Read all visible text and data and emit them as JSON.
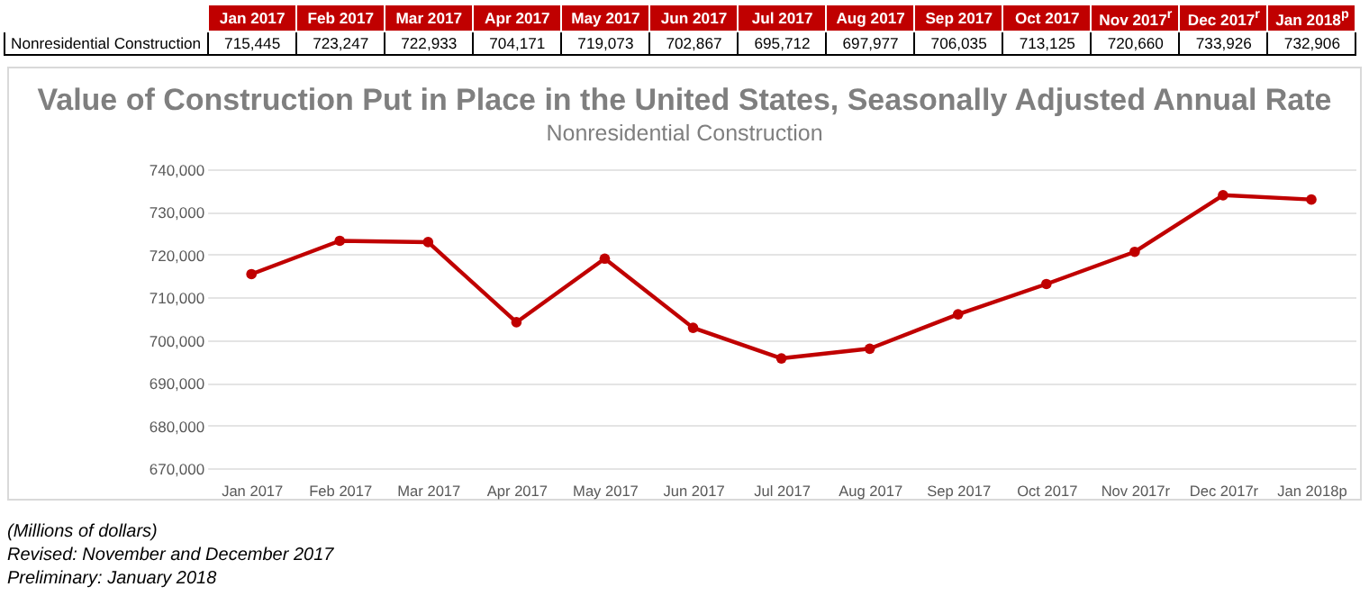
{
  "chart_data": {
    "type": "line",
    "title": "Value of Construction Put in Place in the United States, Seasonally Adjusted Annual Rate",
    "subtitle": "Nonresidential Construction",
    "categories": [
      "Jan 2017",
      "Feb 2017",
      "Mar 2017",
      "Apr 2017",
      "May 2017",
      "Jun 2017",
      "Jul 2017",
      "Aug 2017",
      "Sep 2017",
      "Oct 2017",
      "Nov 2017$^{r}$",
      "Dec 2017$^{r}$",
      "Jan 2018$^{p}$"
    ],
    "series": [
      {
        "name": "Nonresidential Construction",
        "color": "#c00000",
        "values": [
          715445,
          723247,
          722933,
          704171,
          719073,
          702867,
          695712,
          697977,
          706035,
          713125,
          720660,
          733926,
          732906
        ],
        "value_labels": [
          "715,445",
          "723,247",
          "722,933",
          "704,171",
          "719,073",
          "702,867",
          "695,712",
          "697,977",
          "706,035",
          "713,125",
          "720,660",
          "733,926",
          "732,906"
        ]
      }
    ],
    "ylim": [
      670000,
      740000
    ],
    "yticks": [
      {
        "value": 670000,
        "label": "670,000"
      },
      {
        "value": 680000,
        "label": "680,000"
      },
      {
        "value": 690000,
        "label": "690,000"
      },
      {
        "value": 700000,
        "label": "700,000"
      },
      {
        "value": 710000,
        "label": "710,000"
      },
      {
        "value": 720000,
        "label": "720,000"
      },
      {
        "value": 730000,
        "label": "730,000"
      },
      {
        "value": 740000,
        "label": "740,000"
      }
    ],
    "grid": "y",
    "marker": "circle",
    "line_style": "solid",
    "annotations": [
      "(Millions of dollars)",
      "Revised: November and December 2017",
      "Preliminary: January 2018"
    ]
  }
}
